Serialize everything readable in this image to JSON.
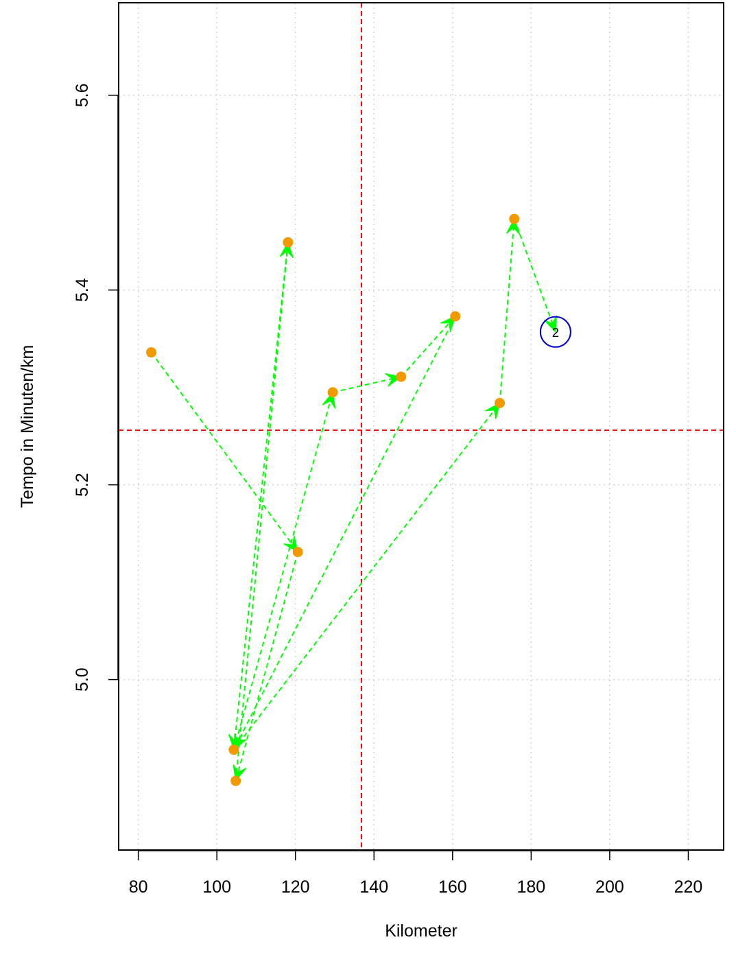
{
  "chart_data": {
    "type": "scatter",
    "title": "",
    "xlabel": "Kilometer",
    "ylabel": "Tempo in Minuten/km",
    "xlim": [
      75,
      229
    ],
    "ylim": [
      4.825,
      5.695
    ],
    "x_ticks": [
      80,
      100,
      120,
      140,
      160,
      180,
      200,
      220
    ],
    "y_ticks": [
      5.0,
      5.2,
      5.4,
      5.6
    ],
    "x_tick_labels": [
      "80",
      "100",
      "120",
      "140",
      "160",
      "180",
      "200",
      "220"
    ],
    "y_tick_labels": [
      "5.0",
      "5.2",
      "5.4",
      "5.6"
    ],
    "grid": true,
    "reference_lines": {
      "vertical_x": 136.8,
      "horizontal_y": 5.256,
      "color": "#ff0000"
    },
    "points": [
      {
        "x": 83.3,
        "y": 5.336
      },
      {
        "x": 120.6,
        "y": 5.131
      },
      {
        "x": 118.1,
        "y": 5.449
      },
      {
        "x": 104.3,
        "y": 4.928
      },
      {
        "x": 104.8,
        "y": 4.896
      },
      {
        "x": 129.5,
        "y": 5.295
      },
      {
        "x": 146.9,
        "y": 5.311
      },
      {
        "x": 160.7,
        "y": 5.373
      },
      {
        "x": 172.0,
        "y": 5.284
      },
      {
        "x": 175.7,
        "y": 5.473
      }
    ],
    "path": [
      {
        "x": 83.3,
        "y": 5.336
      },
      {
        "x": 120.6,
        "y": 5.131
      },
      {
        "x": 104.8,
        "y": 4.896
      },
      {
        "x": 118.1,
        "y": 5.449
      },
      {
        "x": 104.3,
        "y": 4.928
      },
      {
        "x": 129.5,
        "y": 5.295
      },
      {
        "x": 146.9,
        "y": 5.311
      },
      {
        "x": 160.7,
        "y": 5.373
      },
      {
        "x": 104.3,
        "y": 4.928
      },
      {
        "x": 172.0,
        "y": 5.284
      },
      {
        "x": 175.7,
        "y": 5.473
      },
      {
        "x": 186.2,
        "y": 5.357
      }
    ],
    "highlight": {
      "x": 186.2,
      "y": 5.357,
      "label": "2"
    },
    "colors": {
      "points": "#f09a00",
      "path": "#00ff00",
      "highlight": "#0000cc",
      "grid": "#d3d3d3"
    }
  }
}
